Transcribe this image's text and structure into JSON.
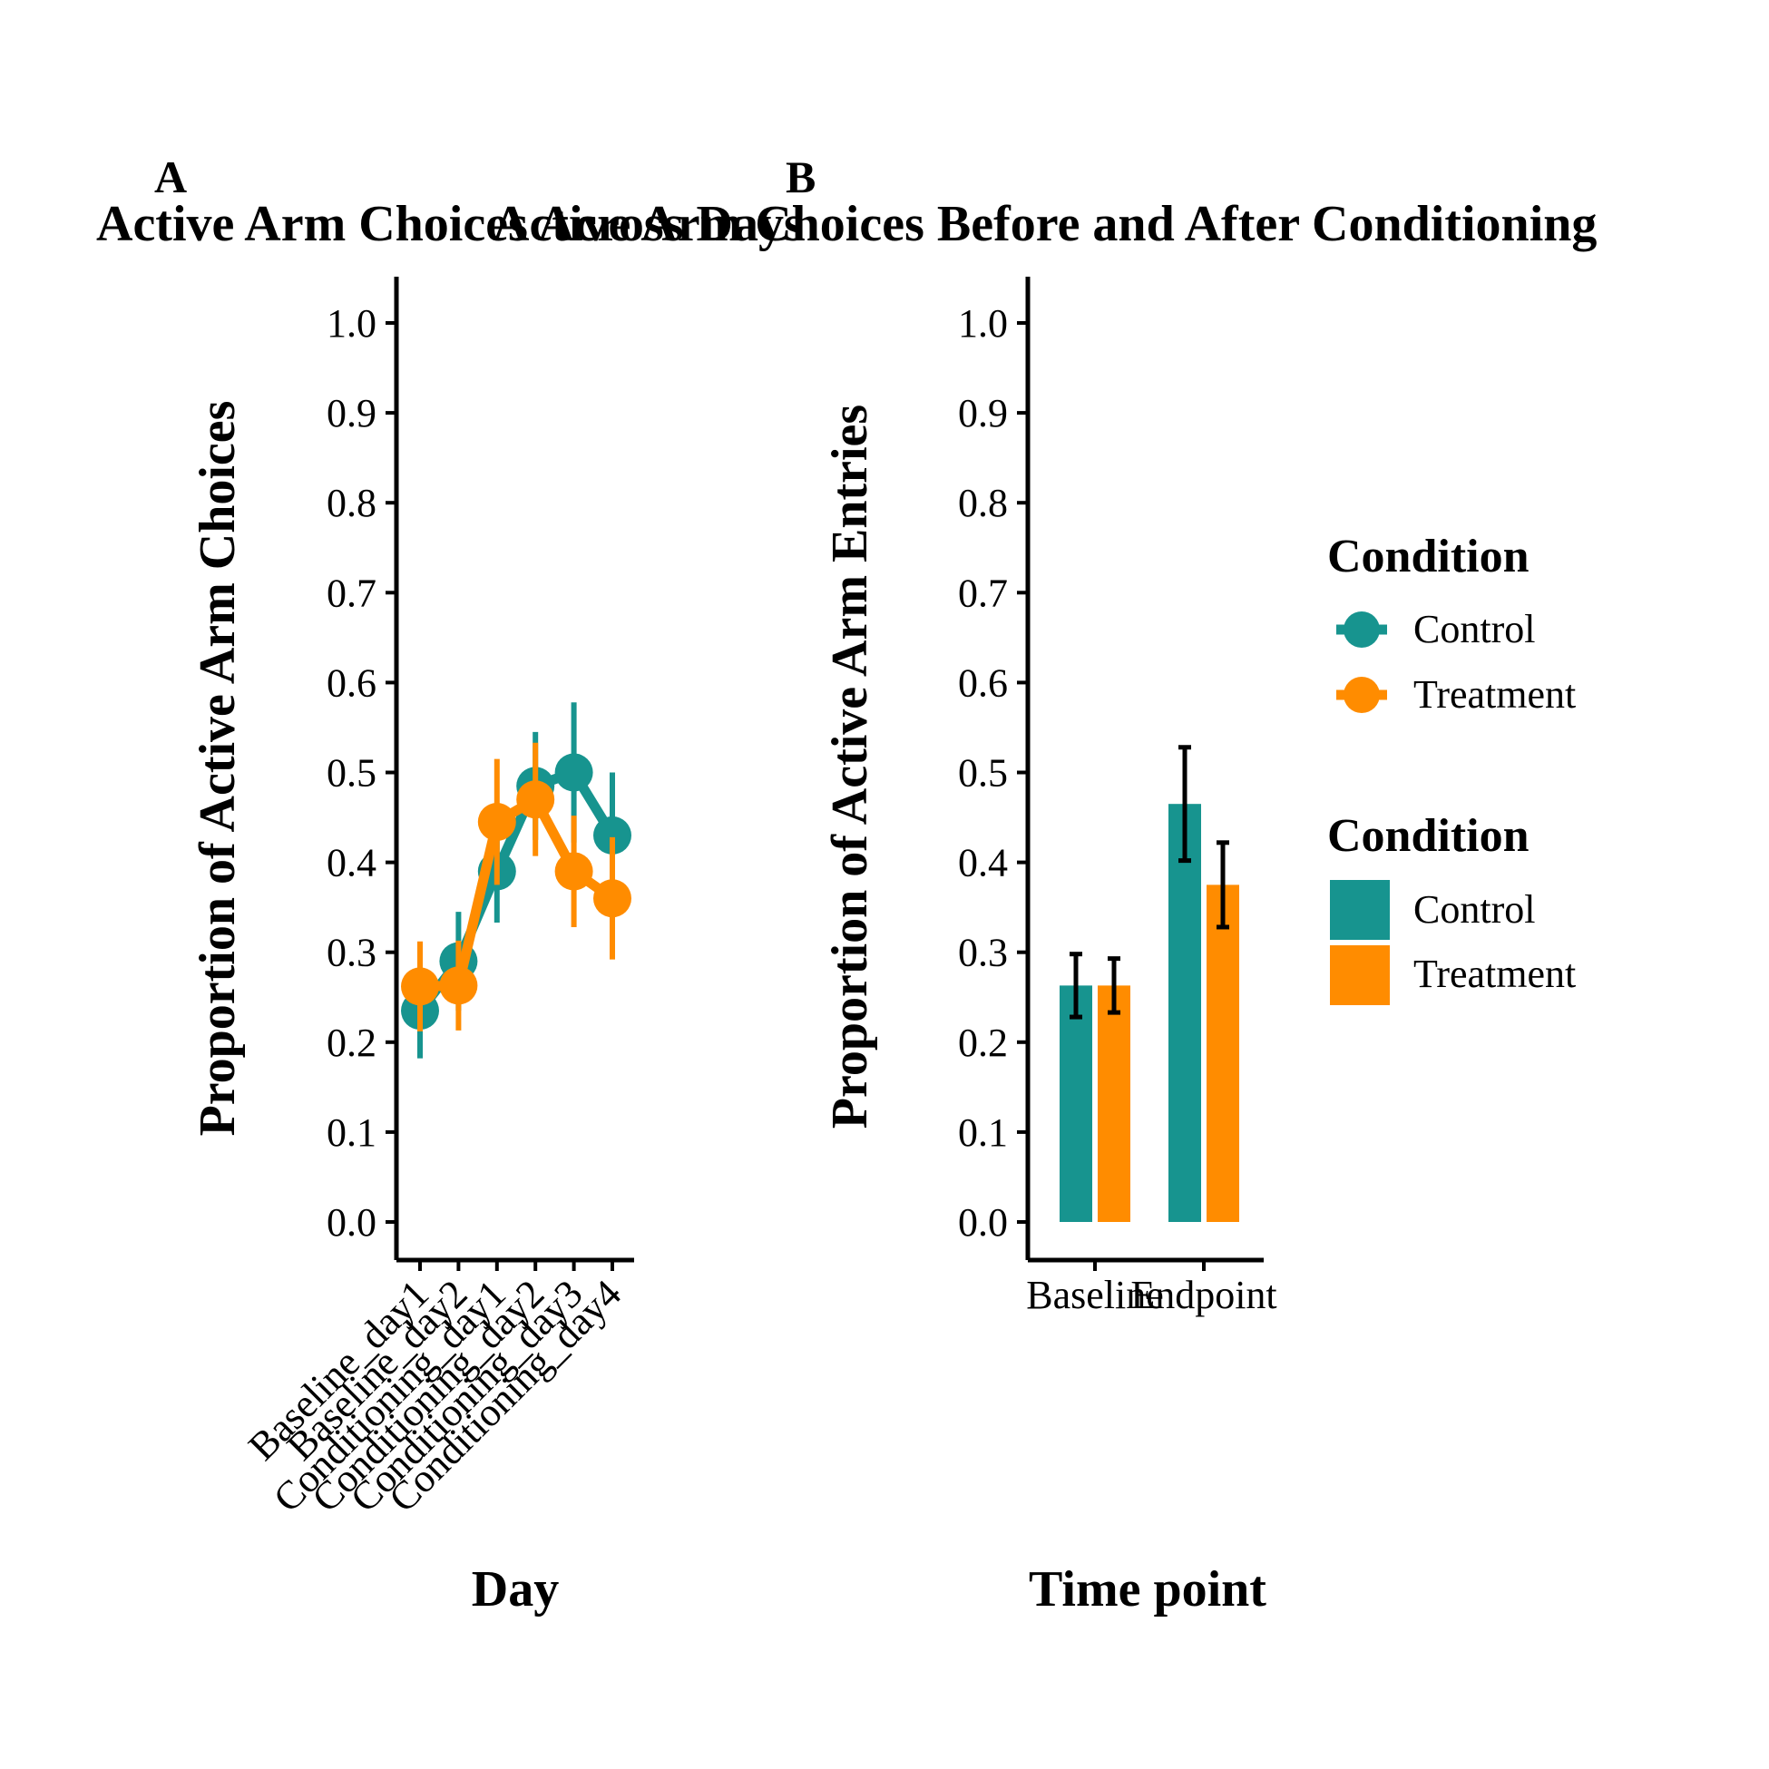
{
  "panel_a_letter": "A",
  "panel_b_letter": "B",
  "colors": {
    "control": "#17948F",
    "treatment": "#FF8C00",
    "axis": "#000000",
    "errorbar_b": "#000000"
  },
  "chart_data": [
    {
      "type": "line",
      "panel": "A",
      "title": "Active Arm Choices Across Days",
      "xlabel": "Day",
      "ylabel": "Proportion of Active Arm Choices",
      "categories": [
        "Baseline_day1",
        "Baseline_day2",
        "Conditioning_day1",
        "Conditioning_day2",
        "Conditioning_day3",
        "Conditioning_day4"
      ],
      "ylim": [
        -0.05,
        1.05
      ],
      "yticks": [
        0.0,
        0.1,
        0.2,
        0.3,
        0.4,
        0.5,
        0.6,
        0.7,
        0.8,
        0.9,
        1.0
      ],
      "ytick_labels": [
        "0.0",
        "0.1",
        "0.2",
        "0.3",
        "0.4",
        "0.5",
        "0.6",
        "0.7",
        "0.8",
        "0.9",
        "1.0"
      ],
      "grid": false,
      "series": [
        {
          "name": "Control",
          "color": "#17948F",
          "values": [
            0.235,
            0.29,
            0.39,
            0.485,
            0.5,
            0.43
          ],
          "err": [
            0.053,
            0.055,
            0.057,
            0.06,
            0.078,
            0.07
          ]
        },
        {
          "name": "Treatment",
          "color": "#FF8C00",
          "values": [
            0.262,
            0.263,
            0.445,
            0.47,
            0.39,
            0.36
          ],
          "err": [
            0.05,
            0.05,
            0.07,
            0.063,
            0.062,
            0.068
          ]
        }
      ]
    },
    {
      "type": "bar",
      "panel": "B",
      "title": "Active Arm Choices Before and After Conditioning",
      "xlabel": "Time point",
      "ylabel": "Proportion of Active Arm Entries",
      "categories": [
        "Baseline",
        "Endpoint"
      ],
      "ylim": [
        -0.05,
        1.05
      ],
      "yticks": [
        0.0,
        0.1,
        0.2,
        0.3,
        0.4,
        0.5,
        0.6,
        0.7,
        0.8,
        0.9,
        1.0
      ],
      "ytick_labels": [
        "0.0",
        "0.1",
        "0.2",
        "0.3",
        "0.4",
        "0.5",
        "0.6",
        "0.7",
        "0.8",
        "0.9",
        "1.0"
      ],
      "grid": false,
      "series": [
        {
          "name": "Control",
          "color": "#17948F",
          "values": [
            0.263,
            0.465
          ],
          "err": [
            0.035,
            0.063
          ]
        },
        {
          "name": "Treatment",
          "color": "#FF8C00",
          "values": [
            0.263,
            0.375
          ],
          "err": [
            0.03,
            0.047
          ]
        }
      ]
    }
  ],
  "legends": [
    {
      "title": "Condition",
      "kind": "point-line",
      "entries": [
        "Control",
        "Treatment"
      ]
    },
    {
      "title": "Condition",
      "kind": "fill",
      "entries": [
        "Control",
        "Treatment"
      ]
    }
  ]
}
